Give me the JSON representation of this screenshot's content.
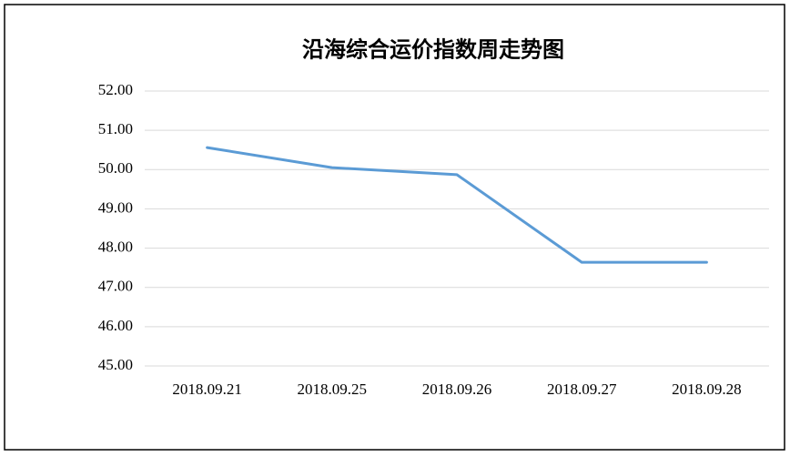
{
  "chart_data": {
    "type": "line",
    "title": "沿海综合运价指数周走势图",
    "categories": [
      "2018.09.21",
      "2018.09.25",
      "2018.09.26",
      "2018.09.27",
      "2018.09.28"
    ],
    "values": [
      50.56,
      50.05,
      49.87,
      47.64,
      47.64
    ],
    "color": "#5b9bd5",
    "ylim": [
      45,
      52
    ],
    "yticks": [
      {
        "value": 45,
        "label": "45.00"
      },
      {
        "value": 46,
        "label": "46.00"
      },
      {
        "value": 47,
        "label": "47.00"
      },
      {
        "value": 48,
        "label": "48.00"
      },
      {
        "value": 49,
        "label": "49.00"
      },
      {
        "value": 50,
        "label": "50.00"
      },
      {
        "value": 51,
        "label": "51.00"
      },
      {
        "value": 52,
        "label": "52.00"
      }
    ],
    "grid": true
  }
}
